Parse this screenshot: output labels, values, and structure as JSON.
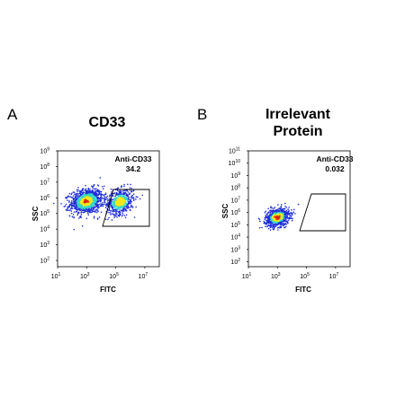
{
  "panels": [
    {
      "letter": "A",
      "title_lines": [
        "CD33"
      ],
      "gate_name": "Anti-CD33",
      "gate_value": "34.2"
    },
    {
      "letter": "B",
      "title_lines": [
        "Irrelevant",
        "Protein"
      ],
      "gate_name": "Anti-CD33",
      "gate_value": "0.032"
    }
  ],
  "chart_data": [
    {
      "type": "scatter",
      "title": "CD33",
      "xlabel": "FITC",
      "ylabel": "SSC",
      "xscale": "log",
      "yscale": "log",
      "xticks": [
        "1",
        "3",
        "5",
        "7"
      ],
      "yticks": [
        "9",
        "8",
        "7",
        "6",
        "5",
        "4",
        "3",
        "2"
      ],
      "xlim": [
        10,
        100000000
      ],
      "ylim": [
        40,
        1000000000
      ],
      "gate": {
        "label": "Anti-CD33",
        "percent": 34.2
      },
      "populations": [
        {
          "name": "",
          "x": 1000,
          "y": 600000,
          "spread_x": 0.35,
          "spread_y": 0.25,
          "share": 0.62
        },
        {
          "name": "",
          "x": 200000,
          "y": 550000,
          "spread_x": 0.3,
          "spread_y": 0.25,
          "share": 0.34
        }
      ],
      "colors": {
        "low": "#1f2fd6",
        "mid": "#2fd7c8",
        "high": "#f4e81c",
        "peak": "#e02417"
      }
    },
    {
      "type": "scatter",
      "title": "Irrelevant Protein",
      "xlabel": "FITC",
      "ylabel": "SSC",
      "xscale": "log",
      "yscale": "log",
      "xticks": [
        "1",
        "3",
        "5",
        "7"
      ],
      "yticks": [
        "11",
        "10",
        "9",
        "8",
        "7",
        "6",
        "5",
        "4",
        "3",
        "2"
      ],
      "xlim": [
        10,
        100000000
      ],
      "ylim": [
        40,
        100000000000
      ],
      "gate": {
        "label": "Anti-CD33",
        "percent": 0.032
      },
      "populations": [
        {
          "name": "",
          "x": 1000,
          "y": 400000,
          "spread_x": 0.25,
          "spread_y": 0.22,
          "share": 1.0
        }
      ],
      "colors": {
        "low": "#1f2fd6",
        "mid": "#2fd7c8",
        "high": "#f4e81c",
        "peak": "#e02417"
      }
    }
  ]
}
